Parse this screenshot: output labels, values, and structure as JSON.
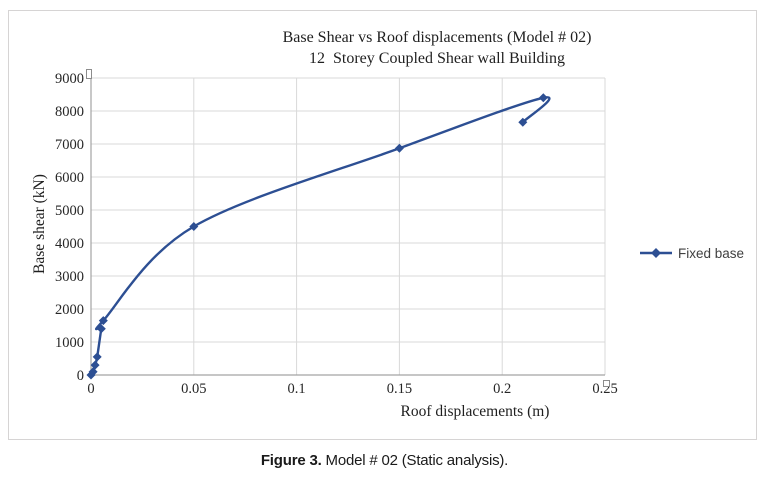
{
  "chart_data": {
    "type": "line",
    "title": "Base Shear vs Roof displacements (Model # 02)",
    "subtitle": "12  Storey Coupled Shear wall Building",
    "xlabel": "Roof displacements (m)",
    "ylabel": "Base shear (kN)",
    "xlim": [
      0,
      0.25
    ],
    "ylim": [
      0,
      9000
    ],
    "x_ticks": [
      0,
      0.05,
      0.1,
      0.15,
      0.2,
      0.25
    ],
    "x_tick_labels": [
      "0",
      "0.05",
      "0.1",
      "0.15",
      "0.2",
      "0.25"
    ],
    "y_ticks": [
      0,
      1000,
      2000,
      3000,
      4000,
      5000,
      6000,
      7000,
      8000,
      9000
    ],
    "y_tick_labels": [
      "0",
      "1000",
      "2000",
      "3000",
      "4000",
      "5000",
      "6000",
      "7000",
      "8000",
      "9000"
    ],
    "grid": true,
    "legend_position": "right",
    "series": [
      {
        "name": "Fixed base",
        "color": "#2d4f93",
        "marker": "diamond",
        "smooth": true,
        "points": [
          [
            0,
            0
          ],
          [
            0.001,
            100
          ],
          [
            0.002,
            300
          ],
          [
            0.003,
            550
          ],
          [
            0.005,
            1400
          ],
          [
            0.006,
            1650
          ],
          [
            0.05,
            4500
          ],
          [
            0.15,
            6870
          ],
          [
            0.22,
            8400
          ],
          [
            0.21,
            7660
          ]
        ]
      }
    ]
  },
  "legend": {
    "label": "Fixed base"
  },
  "caption": {
    "bold": "Figure 3.",
    "rest": " Model # 02 (Static analysis)."
  },
  "colors": {
    "series": "#2d4f93",
    "grid": "#d9d9d9",
    "axis": "#a3a3a3",
    "tick_text": "#262626",
    "border": "#d6d4d4"
  }
}
